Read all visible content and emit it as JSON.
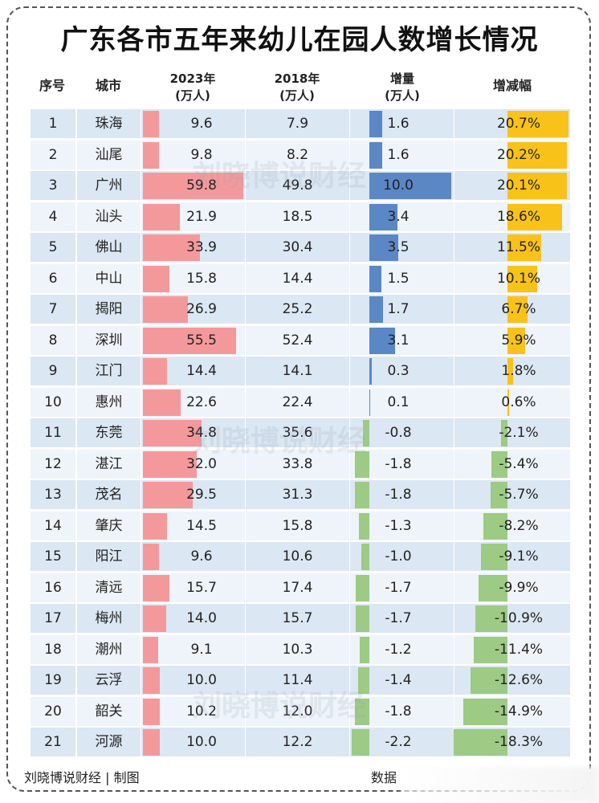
{
  "title": "广东各市五年来幼儿在园人数增长情况",
  "headers": {
    "seq": "序号",
    "city": "城市",
    "y2023": "2023年",
    "y2018": "2018年",
    "inc": "增量",
    "pct": "增减幅",
    "unit": "(万人)"
  },
  "footer": {
    "author": "刘晓博说财经 | 制图",
    "source": "数据"
  },
  "watermark": "刘晓博说财经",
  "colors": {
    "pink": "#f4999b",
    "blue": "#5b87c5",
    "green": "#9dca84",
    "yellow": "#f9c21a",
    "rowA": "#dbe7f3",
    "rowB": "#eef4fa"
  },
  "chart_data": {
    "type": "table",
    "columns": [
      "序号",
      "城市",
      "2023年(万人)",
      "2018年(万人)",
      "增量(万人)",
      "增减幅"
    ],
    "rows": [
      [
        "1",
        "珠海",
        9.6,
        7.9,
        1.6,
        "20.7%"
      ],
      [
        "2",
        "汕尾",
        9.8,
        8.2,
        1.6,
        "20.2%"
      ],
      [
        "3",
        "广州",
        59.8,
        49.8,
        10.0,
        "20.1%"
      ],
      [
        "4",
        "汕头",
        21.9,
        18.5,
        3.4,
        "18.6%"
      ],
      [
        "5",
        "佛山",
        33.9,
        30.4,
        3.5,
        "11.5%"
      ],
      [
        "6",
        "中山",
        15.8,
        14.4,
        1.5,
        "10.1%"
      ],
      [
        "7",
        "揭阳",
        26.9,
        25.2,
        1.7,
        "6.7%"
      ],
      [
        "8",
        "深圳",
        55.5,
        52.4,
        3.1,
        "5.9%"
      ],
      [
        "9",
        "江门",
        14.4,
        14.1,
        0.3,
        "1.8%"
      ],
      [
        "10",
        "惠州",
        22.6,
        22.4,
        0.1,
        "0.6%"
      ],
      [
        "11",
        "东莞",
        34.8,
        35.6,
        -0.8,
        "-2.1%"
      ],
      [
        "12",
        "湛江",
        32.0,
        33.8,
        -1.8,
        "-5.4%"
      ],
      [
        "13",
        "茂名",
        29.5,
        31.3,
        -1.8,
        "-5.7%"
      ],
      [
        "14",
        "肇庆",
        14.5,
        15.8,
        -1.3,
        "-8.2%"
      ],
      [
        "15",
        "阳江",
        9.6,
        10.6,
        -1.0,
        "-9.1%"
      ],
      [
        "16",
        "清远",
        15.7,
        17.4,
        -1.7,
        "-9.9%"
      ],
      [
        "17",
        "梅州",
        14.0,
        15.7,
        -1.7,
        "-10.9%"
      ],
      [
        "18",
        "潮州",
        9.1,
        10.3,
        -1.2,
        "-11.4%"
      ],
      [
        "19",
        "云浮",
        10.0,
        11.4,
        -1.4,
        "-12.6%"
      ],
      [
        "20",
        "韶关",
        10.2,
        12.0,
        -1.8,
        "-14.9%"
      ],
      [
        "21",
        "河源",
        10.0,
        12.2,
        -2.2,
        "-18.3%"
      ]
    ]
  }
}
